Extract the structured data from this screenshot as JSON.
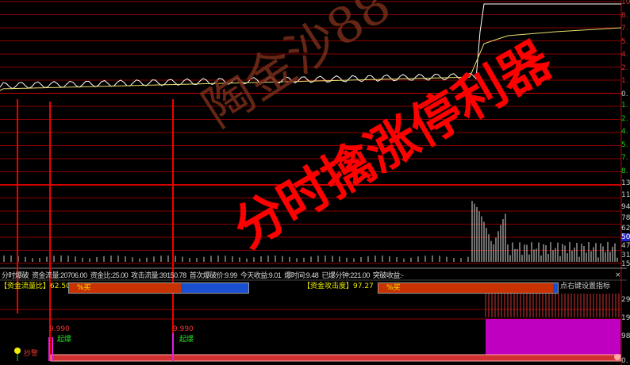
{
  "watermark": "陶金沙88",
  "banner": "分时擒涨停利器",
  "price_axis": {
    "upper": [
      "10",
      "8.",
      "7.",
      "5.",
      "4.",
      "2.",
      "1.",
      "0."
    ],
    "lower": [
      "1.",
      "2.",
      "4.",
      "5.",
      "7.",
      "8."
    ]
  },
  "volume_axis": [
    "13",
    "11",
    "94",
    "78",
    "62",
    "50",
    "47",
    "31",
    "15"
  ],
  "indicator_axis": [
    "29",
    "19",
    "98",
    "0."
  ],
  "info": {
    "title": "分时爆破",
    "fund_flow": "资金流量:20706.00",
    "fund_ratio": "资金比:25.00",
    "attack_flow": "攻击流量:39150.78",
    "first_break_price": "首次爆破价:9.99",
    "today_gain": "今天收益:9.01",
    "break_time": "爆时间:9.48",
    "break_minutes": "已爆分钟:221.00",
    "breakout_gain": "突破收益:-",
    "hint": "点右键设置指标",
    "close": "×"
  },
  "bars": [
    {
      "label": "【资金流量比】62.50",
      "text": "%买",
      "buy_pct": 62.5,
      "buy_color": "#c83200",
      "sell_color": "#1a50d0"
    },
    {
      "label": "【资金攻击度】97.27",
      "text": "%买",
      "buy_pct": 97.27,
      "buy_color": "#c83200",
      "sell_color": "#1a50d0"
    }
  ],
  "signals": [
    {
      "value": "9.990",
      "label": "起爆"
    },
    {
      "value": "9.990",
      "label": "起爆"
    },
    {
      "label": "抄警"
    }
  ],
  "colors": {
    "grid": "#8a0000",
    "price": "#ffffff",
    "avg": "#e8e070",
    "indicator": "#c000c0",
    "signal": "#e020e0"
  }
}
